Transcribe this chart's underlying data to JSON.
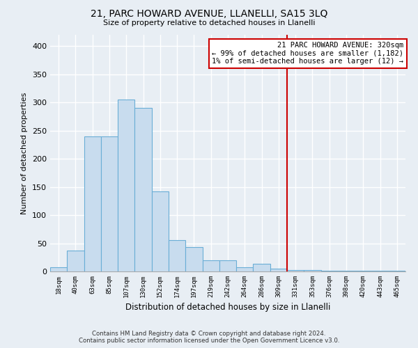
{
  "title": "21, PARC HOWARD AVENUE, LLANELLI, SA15 3LQ",
  "subtitle": "Size of property relative to detached houses in Llanelli",
  "xlabel": "Distribution of detached houses by size in Llanelli",
  "ylabel": "Number of detached properties",
  "bin_labels": [
    "18sqm",
    "40sqm",
    "63sqm",
    "85sqm",
    "107sqm",
    "130sqm",
    "152sqm",
    "174sqm",
    "197sqm",
    "219sqm",
    "242sqm",
    "264sqm",
    "286sqm",
    "309sqm",
    "331sqm",
    "353sqm",
    "376sqm",
    "398sqm",
    "420sqm",
    "443sqm",
    "465sqm"
  ],
  "bar_values": [
    8,
    37,
    240,
    240,
    305,
    290,
    142,
    55,
    43,
    20,
    20,
    8,
    13,
    5,
    3,
    2,
    1,
    1,
    1,
    1,
    1
  ],
  "bar_color": "#c8dcee",
  "bar_edge_color": "#6aaed6",
  "ref_line_label": "21 PARC HOWARD AVENUE: 320sqm",
  "annotation_line1": "← 99% of detached houses are smaller (1,182)",
  "annotation_line2": "1% of semi-detached houses are larger (12) →",
  "ref_line_color": "#cc0000",
  "annotation_box_edge": "#cc0000",
  "annotation_box_facecolor": "#ffffff",
  "footer_line1": "Contains HM Land Registry data © Crown copyright and database right 2024.",
  "footer_line2": "Contains public sector information licensed under the Open Government Licence v3.0.",
  "ylim": [
    0,
    420
  ],
  "background_color": "#e8eef4",
  "grid_color": "#ffffff",
  "yticks": [
    0,
    50,
    100,
    150,
    200,
    250,
    300,
    350,
    400
  ]
}
